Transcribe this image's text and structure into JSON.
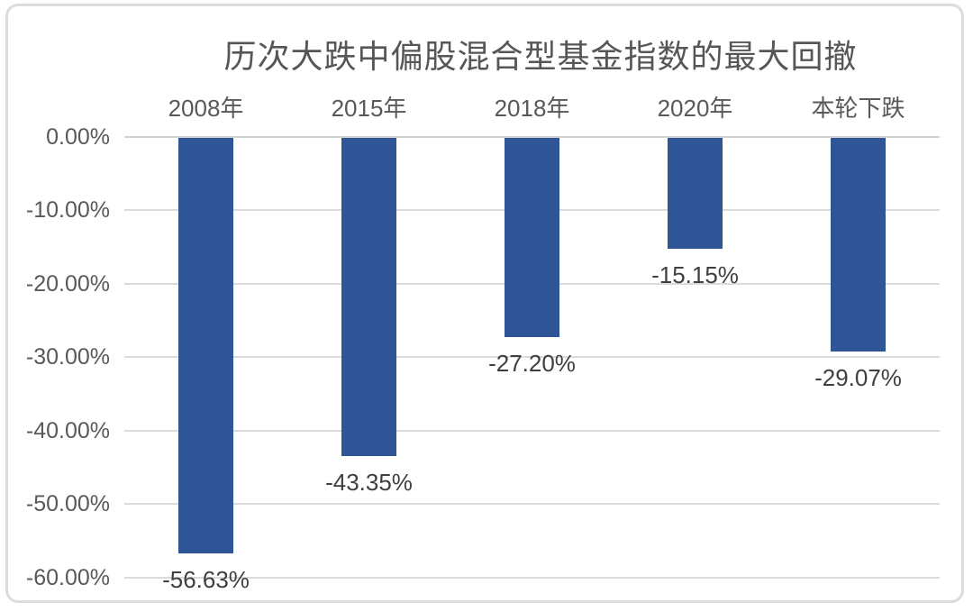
{
  "chart_data": {
    "type": "bar",
    "title": "历次大跌中偏股混合型基金指数的最大回撤",
    "categories": [
      "2008年",
      "2015年",
      "2018年",
      "2020年",
      "本轮下跌"
    ],
    "values": [
      -56.63,
      -43.35,
      -27.2,
      -15.15,
      -29.07
    ],
    "data_labels": [
      "-56.63%",
      "-43.35%",
      "-27.20%",
      "-15.15%",
      "-29.07%"
    ],
    "y_ticks": [
      {
        "label": "0.00%",
        "value": 0
      },
      {
        "label": "-10.00%",
        "value": -10
      },
      {
        "label": "-20.00%",
        "value": -20
      },
      {
        "label": "-30.00%",
        "value": -30
      },
      {
        "label": "-40.00%",
        "value": -40
      },
      {
        "label": "-50.00%",
        "value": -50
      },
      {
        "label": "-60.00%",
        "value": -60
      }
    ],
    "ylim": [
      -60,
      0
    ],
    "xlabel": "",
    "ylabel": "",
    "grid": true,
    "legend_position": "none",
    "bar_color": "#2F5597",
    "gridline_color": "#DBDBDB",
    "title_color": "#565656",
    "axis_label_color": "#595959",
    "data_label_color": "#3F3F3F"
  }
}
